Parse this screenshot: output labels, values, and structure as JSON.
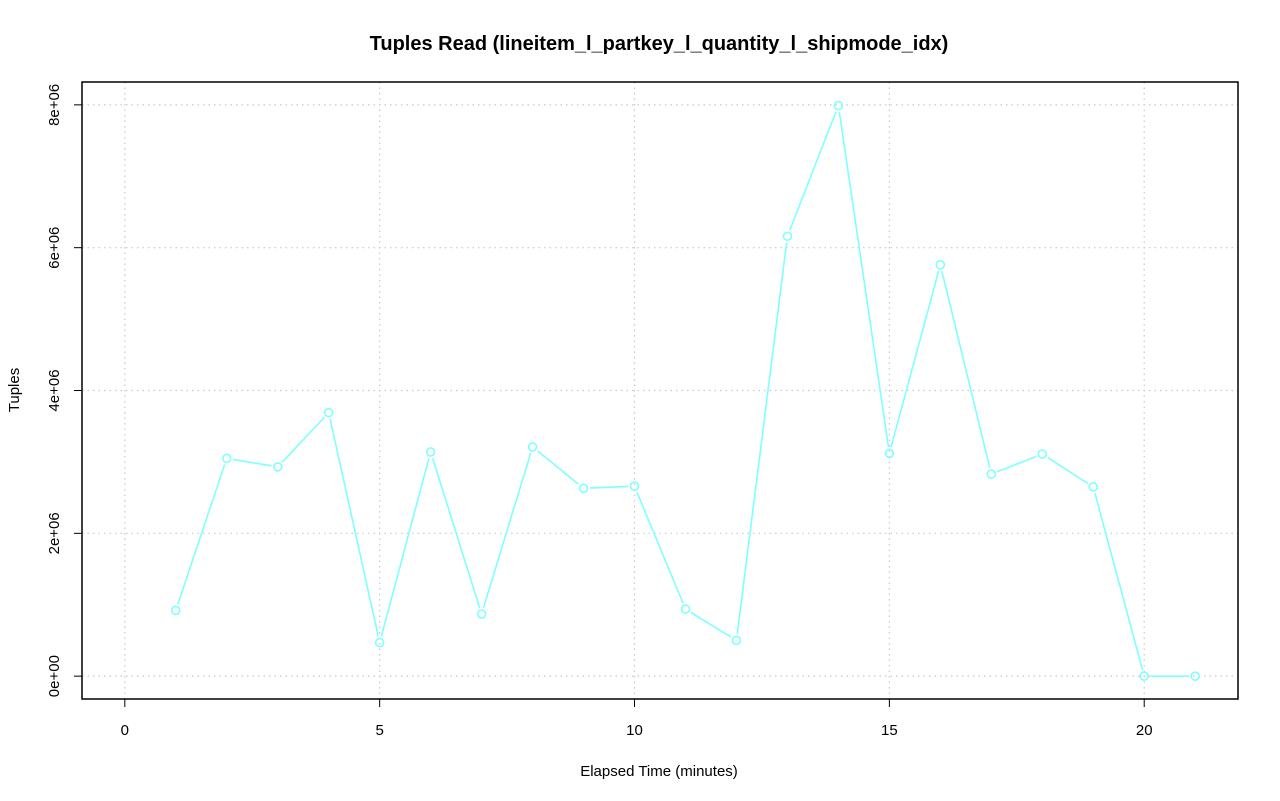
{
  "chart_data": {
    "type": "line",
    "title": "Tuples Read (lineitem_l_partkey_l_quantity_l_shipmode_idx)",
    "xlabel": "Elapsed Time (minutes)",
    "ylabel": "Tuples",
    "xlim": [
      -0.84,
      21.84
    ],
    "ylim": [
      -320000,
      8320000
    ],
    "x_ticks": [
      0,
      5,
      10,
      15,
      20
    ],
    "x_tick_labels": [
      "0",
      "5",
      "10",
      "15",
      "20"
    ],
    "y_ticks": [
      0,
      2000000,
      4000000,
      6000000,
      8000000
    ],
    "y_tick_labels": [
      "0e+00",
      "2e+06",
      "4e+06",
      "6e+06",
      "8e+06"
    ],
    "grid": true,
    "legend": "none",
    "series": [
      {
        "color": "#7fffff",
        "marker": "open-circle",
        "x": [
          1,
          2,
          3,
          4,
          5,
          6,
          7,
          8,
          9,
          10,
          11,
          12,
          13,
          14,
          15,
          16,
          17,
          18,
          19,
          20,
          21
        ],
        "values": [
          920000,
          3050000,
          2930000,
          3690000,
          470000,
          3140000,
          870000,
          3210000,
          2630000,
          2660000,
          940000,
          500000,
          6160000,
          7990000,
          3120000,
          5760000,
          2830000,
          3110000,
          2650000,
          0,
          0
        ]
      }
    ]
  }
}
